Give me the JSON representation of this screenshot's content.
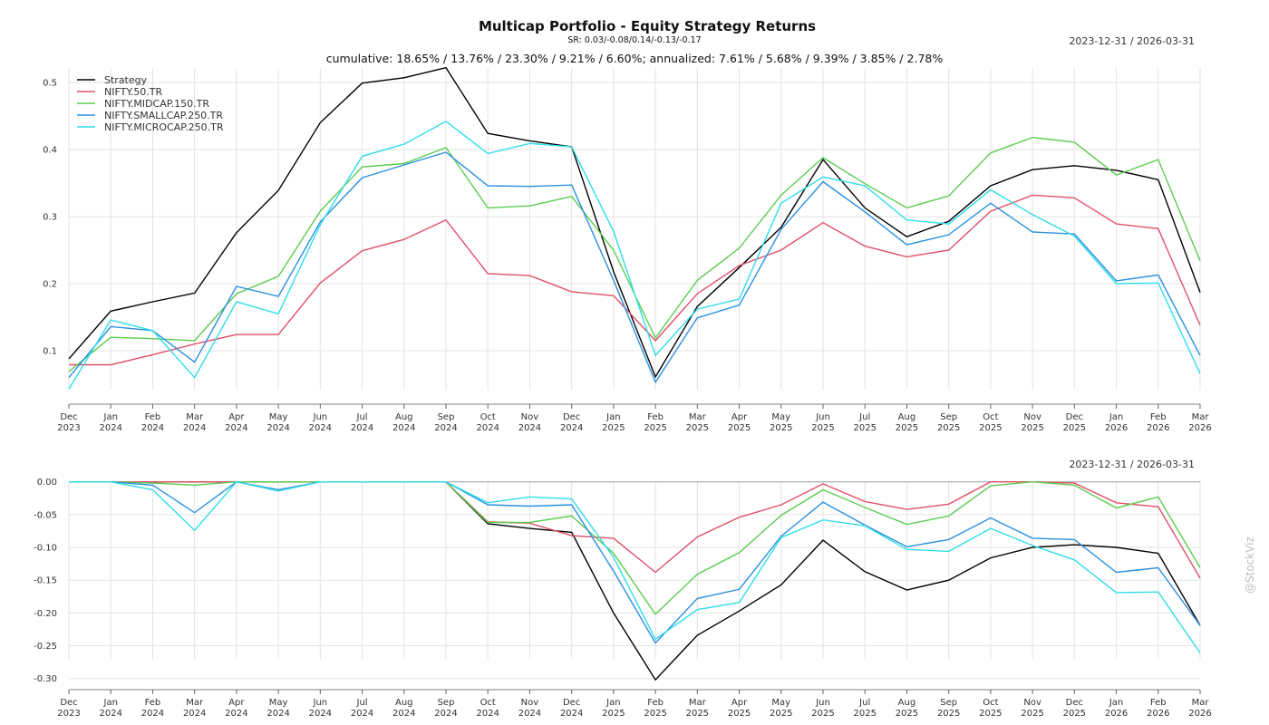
{
  "header": {
    "title": "Multicap Portfolio - Equity Strategy Returns",
    "subtitle": "SR: 0.03/-0.08/0.14/-0.13/-0.17",
    "summary": "cumulative: 18.65% / 13.76% / 23.30% / 9.21% / 6.60%; annualized: 7.61% / 5.68% / 9.39% / 3.85% / 2.78%",
    "date_range_top": "2023-12-31 / 2026-03-31",
    "date_range_bottom": "2023-12-31 / 2026-03-31"
  },
  "watermark": "@StockViz",
  "chart_data": [
    {
      "type": "line",
      "title": "Multicap Portfolio - Equity Strategy Returns",
      "subtitle": "cumulative returns",
      "xlabel": "",
      "ylabel": "",
      "ylim": [
        0.04,
        0.52
      ],
      "yticks": [
        0.1,
        0.2,
        0.3,
        0.4,
        0.5
      ],
      "ytick_labels": [
        "0.1",
        "0.2",
        "0.3",
        "0.4",
        "0.5"
      ],
      "grid": true,
      "legend": "top-left",
      "categories": [
        "Dec 2023",
        "Jan 2024",
        "Feb 2024",
        "Mar 2024",
        "Apr 2024",
        "May 2024",
        "Jun 2024",
        "Jul 2024",
        "Aug 2024",
        "Sep 2024",
        "Oct 2024",
        "Nov 2024",
        "Dec 2024",
        "Jan 2025",
        "Feb 2025",
        "Mar 2025",
        "Apr 2025",
        "May 2025",
        "Jun 2025",
        "Jul 2025",
        "Aug 2025",
        "Sep 2025",
        "Oct 2025",
        "Nov 2025",
        "Dec 2025",
        "Jan 2026",
        "Feb 2026",
        "Mar 2026"
      ],
      "series": [
        {
          "name": "Strategy",
          "color": "#000000",
          "values": [
            0.088,
            0.159,
            0.173,
            0.186,
            0.276,
            0.339,
            0.44,
            0.499,
            0.507,
            0.522,
            0.424,
            0.413,
            0.404,
            0.218,
            0.061,
            0.166,
            0.224,
            0.284,
            0.385,
            0.313,
            0.27,
            0.293,
            0.346,
            0.37,
            0.376,
            0.369,
            0.355,
            0.187
          ]
        },
        {
          "name": "NIFTY.50.TR",
          "color": "#e05068",
          "values": [
            0.079,
            0.079,
            0.094,
            0.11,
            0.124,
            0.124,
            0.201,
            0.249,
            0.266,
            0.295,
            0.215,
            0.212,
            0.188,
            0.182,
            0.115,
            0.185,
            0.227,
            0.25,
            0.291,
            0.256,
            0.24,
            0.25,
            0.308,
            0.332,
            0.328,
            0.289,
            0.282,
            0.138
          ]
        },
        {
          "name": "NIFTY.MIDCAP.150.TR",
          "color": "#5ccc50",
          "values": [
            0.069,
            0.12,
            0.118,
            0.115,
            0.185,
            0.211,
            0.308,
            0.374,
            0.379,
            0.403,
            0.313,
            0.316,
            0.33,
            0.25,
            0.119,
            0.205,
            0.253,
            0.332,
            0.388,
            0.349,
            0.313,
            0.331,
            0.395,
            0.418,
            0.411,
            0.362,
            0.385,
            0.234
          ]
        },
        {
          "name": "NIFTY.SMALLCAP.250.TR",
          "color": "#2b90e0",
          "values": [
            0.06,
            0.136,
            0.13,
            0.083,
            0.196,
            0.181,
            0.292,
            0.358,
            0.377,
            0.396,
            0.346,
            0.345,
            0.347,
            0.205,
            0.053,
            0.149,
            0.168,
            0.281,
            0.352,
            0.307,
            0.258,
            0.273,
            0.32,
            0.277,
            0.274,
            0.204,
            0.213,
            0.093
          ]
        },
        {
          "name": "NIFTY.MICROCAP.250.TR",
          "color": "#30dde8",
          "values": [
            0.043,
            0.146,
            0.13,
            0.06,
            0.173,
            0.155,
            0.288,
            0.39,
            0.408,
            0.442,
            0.394,
            0.409,
            0.404,
            0.278,
            0.093,
            0.162,
            0.177,
            0.32,
            0.359,
            0.346,
            0.295,
            0.289,
            0.34,
            0.303,
            0.271,
            0.2,
            0.201,
            0.066
          ]
        }
      ]
    },
    {
      "type": "line",
      "title": "",
      "subtitle": "drawdowns",
      "xlabel": "",
      "ylabel": "",
      "ylim": [
        -0.31,
        0.0
      ],
      "yticks": [
        0.0,
        -0.05,
        -0.1,
        -0.15,
        -0.2,
        -0.25,
        -0.3
      ],
      "ytick_labels": [
        "0.00",
        "-0.05",
        "-0.10",
        "-0.15",
        "-0.20",
        "-0.25",
        "-0.30"
      ],
      "grid": true,
      "legend": "none",
      "categories": [
        "Dec 2023",
        "Jan 2024",
        "Feb 2024",
        "Mar 2024",
        "Apr 2024",
        "May 2024",
        "Jun 2024",
        "Jul 2024",
        "Aug 2024",
        "Sep 2024",
        "Oct 2024",
        "Nov 2024",
        "Dec 2024",
        "Jan 2025",
        "Feb 2025",
        "Mar 2025",
        "Apr 2025",
        "May 2025",
        "Jun 2025",
        "Jul 2025",
        "Aug 2025",
        "Sep 2025",
        "Oct 2025",
        "Nov 2025",
        "Dec 2025",
        "Jan 2026",
        "Feb 2026",
        "Mar 2026"
      ],
      "series": [
        {
          "name": "Strategy",
          "color": "#000000",
          "values": [
            0,
            0,
            0,
            0,
            0,
            0,
            0,
            0,
            0,
            0,
            -0.064,
            -0.071,
            -0.077,
            -0.2,
            -0.302,
            -0.234,
            -0.197,
            -0.157,
            -0.089,
            -0.137,
            -0.165,
            -0.15,
            -0.116,
            -0.1,
            -0.096,
            -0.1,
            -0.109,
            -0.219
          ]
        },
        {
          "name": "NIFTY.50.TR",
          "color": "#e05068",
          "values": [
            0,
            0,
            0,
            0,
            0,
            0,
            0,
            0,
            0,
            0,
            -0.061,
            -0.063,
            -0.082,
            -0.086,
            -0.138,
            -0.084,
            -0.054,
            -0.035,
            -0.003,
            -0.03,
            -0.042,
            -0.034,
            0,
            0,
            -0.002,
            -0.032,
            -0.038,
            -0.147
          ]
        },
        {
          "name": "NIFTY.MIDCAP.150.TR",
          "color": "#5ccc50",
          "values": [
            0,
            0,
            -0.002,
            -0.005,
            0,
            0,
            0,
            0,
            0,
            0,
            -0.062,
            -0.062,
            -0.052,
            -0.109,
            -0.202,
            -0.141,
            -0.108,
            -0.051,
            -0.012,
            -0.039,
            -0.065,
            -0.052,
            -0.006,
            0,
            -0.005,
            -0.04,
            -0.023,
            -0.131
          ]
        },
        {
          "name": "NIFTY.SMALLCAP.250.TR",
          "color": "#2b90e0",
          "values": [
            0,
            0,
            -0.005,
            -0.047,
            0,
            -0.012,
            0,
            0,
            0,
            0,
            -0.035,
            -0.037,
            -0.035,
            -0.136,
            -0.246,
            -0.178,
            -0.164,
            -0.083,
            -0.031,
            -0.066,
            -0.099,
            -0.088,
            -0.055,
            -0.086,
            -0.088,
            -0.138,
            -0.131,
            -0.219
          ]
        },
        {
          "name": "NIFTY.MICROCAP.250.TR",
          "color": "#30dde8",
          "values": [
            0,
            0,
            -0.012,
            -0.074,
            0,
            -0.014,
            0,
            0,
            0,
            0,
            -0.032,
            -0.023,
            -0.026,
            -0.115,
            -0.24,
            -0.195,
            -0.184,
            -0.085,
            -0.058,
            -0.067,
            -0.103,
            -0.106,
            -0.071,
            -0.097,
            -0.119,
            -0.169,
            -0.168,
            -0.261
          ]
        }
      ]
    }
  ]
}
